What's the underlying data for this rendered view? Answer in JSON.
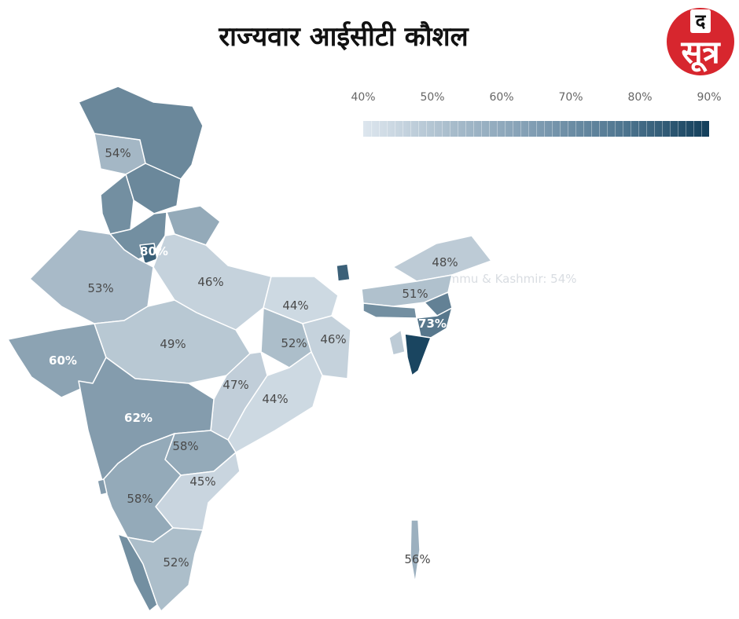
{
  "title": "राज्यवार आईसीटी कौशल",
  "logo": {
    "tag": "द",
    "word": "सूत्र"
  },
  "legend": {
    "ticks": [
      "40%",
      "50%",
      "60%",
      "70%",
      "80%",
      "90%"
    ],
    "min": 40,
    "max": 90,
    "color_low": "#dde6ee",
    "color_high": "#123e5a"
  },
  "hover_label": "Jammu & Kashmir: 54%",
  "states": [
    {
      "name": "Jammu & Kashmir",
      "label": "54%",
      "value": 54
    },
    {
      "name": "Ladakh",
      "label": "",
      "value": 68
    },
    {
      "name": "Himachal Pradesh",
      "label": "",
      "value": 68
    },
    {
      "name": "Punjab",
      "label": "",
      "value": 66
    },
    {
      "name": "Uttarakhand",
      "label": "",
      "value": 58
    },
    {
      "name": "Haryana",
      "label": "",
      "value": 66
    },
    {
      "name": "Delhi",
      "label": "80%",
      "value": 80
    },
    {
      "name": "Rajasthan",
      "label": "53%",
      "value": 53
    },
    {
      "name": "Uttar Pradesh",
      "label": "46%",
      "value": 46
    },
    {
      "name": "Bihar",
      "label": "44%",
      "value": 44
    },
    {
      "name": "Gujarat",
      "label": "60%",
      "value": 60
    },
    {
      "name": "Madhya Pradesh",
      "label": "49%",
      "value": 49
    },
    {
      "name": "Jharkhand",
      "label": "52%",
      "value": 52
    },
    {
      "name": "West Bengal",
      "label": "46%",
      "value": 46
    },
    {
      "name": "Chhattisgarh",
      "label": "47%",
      "value": 47
    },
    {
      "name": "Odisha",
      "label": "44%",
      "value": 44
    },
    {
      "name": "Maharashtra",
      "label": "62%",
      "value": 62
    },
    {
      "name": "Telangana",
      "label": "58%",
      "value": 58
    },
    {
      "name": "Andhra Pradesh",
      "label": "45%",
      "value": 45
    },
    {
      "name": "Karnataka",
      "label": "58%",
      "value": 58
    },
    {
      "name": "Goa",
      "label": "",
      "value": 62
    },
    {
      "name": "Kerala",
      "label": "",
      "value": 66
    },
    {
      "name": "Tamil Nadu",
      "label": "52%",
      "value": 52
    },
    {
      "name": "Sikkim",
      "label": "",
      "value": 80
    },
    {
      "name": "Arunachal Pradesh",
      "label": "48%",
      "value": 48
    },
    {
      "name": "Assam",
      "label": "51%",
      "value": 51
    },
    {
      "name": "Meghalaya",
      "label": "",
      "value": 66
    },
    {
      "name": "Nagaland",
      "label": "",
      "value": 70
    },
    {
      "name": "Manipur",
      "label": "73%",
      "value": 73
    },
    {
      "name": "Tripura",
      "label": "",
      "value": 48
    },
    {
      "name": "Mizoram",
      "label": "",
      "value": 88
    },
    {
      "name": "Andaman & Nicobar Islands",
      "label": "56%",
      "value": 56
    }
  ]
}
